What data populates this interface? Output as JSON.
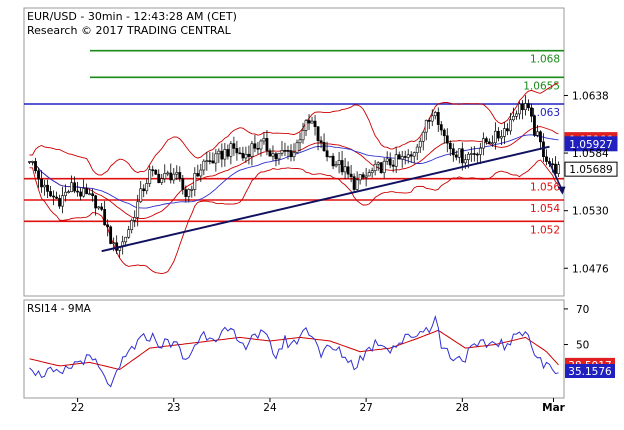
{
  "header": {
    "title": "EUR/USD - 30min - 12:43:28 AM (CET)",
    "research": "Research © 2017 TRADING CENTRAL"
  },
  "colors": {
    "resistance_green": "#1a8a1a",
    "pivot_blue": "#2020c0",
    "support_red": "#e01010",
    "trendline_navy": "#101060",
    "candles": "#000000",
    "bollinger": "#cc0000",
    "ma_blue": "#3030d0",
    "badge_red": "#e02020",
    "badge_blue": "#2020c0",
    "badge_black": "#000000"
  },
  "chart_data": [
    {
      "type": "candlestick",
      "instrument": "EUR/USD",
      "timeframe": "30min",
      "ylim": [
        1.045,
        1.072
      ],
      "price_ticks": [
        "1.0638",
        "1.0584",
        "1.0530",
        "1.0476"
      ],
      "x_tick_labels": [
        "22",
        "23",
        "24",
        "27",
        "28",
        "Mar"
      ],
      "levels": [
        {
          "label": "1.068",
          "value": 1.068,
          "color": "#1a8a1a"
        },
        {
          "label": "1.0655",
          "value": 1.0655,
          "color": "#1a8a1a"
        },
        {
          "label": "1.063",
          "value": 1.063,
          "color": "#2020c0"
        },
        {
          "label": "1.056",
          "value": 1.056,
          "color": "#e01010"
        },
        {
          "label": "1.054",
          "value": 1.054,
          "color": "#e01010"
        },
        {
          "label": "1.052",
          "value": 1.052,
          "color": "#e01010"
        }
      ],
      "price_badges": [
        {
          "label": "1.05966",
          "value": 1.05966,
          "style": "red"
        },
        {
          "label": "1.05927",
          "value": 1.05927,
          "style": "blue"
        },
        {
          "label": "1.05689",
          "value": 1.05689,
          "style": "black"
        }
      ],
      "trendline": {
        "from": [
          24,
          1.0492
        ],
        "to": [
          173,
          1.059
        ]
      },
      "forecast_arrow": {
        "from": [
          173,
          1.0575
        ],
        "to": [
          177,
          1.0545
        ]
      },
      "close_anchors": [
        [
          0,
          1.058
        ],
        [
          3,
          1.056
        ],
        [
          6,
          1.0545
        ],
        [
          10,
          1.054
        ],
        [
          14,
          1.0552
        ],
        [
          18,
          1.0545
        ],
        [
          22,
          1.0538
        ],
        [
          25,
          1.052
        ],
        [
          28,
          1.0495
        ],
        [
          31,
          1.05
        ],
        [
          34,
          1.052
        ],
        [
          37,
          1.0545
        ],
        [
          40,
          1.0565
        ],
        [
          44,
          1.056
        ],
        [
          48,
          1.0565
        ],
        [
          52,
          1.0545
        ],
        [
          55,
          1.056
        ],
        [
          58,
          1.0575
        ],
        [
          62,
          1.0578
        ],
        [
          65,
          1.0585
        ],
        [
          68,
          1.0588
        ],
        [
          71,
          1.058
        ],
        [
          74,
          1.059
        ],
        [
          78,
          1.0592
        ],
        [
          82,
          1.058
        ],
        [
          85,
          1.0585
        ],
        [
          88,
          1.0585
        ],
        [
          91,
          1.0608
        ],
        [
          94,
          1.0612
        ],
        [
          97,
          1.059
        ],
        [
          100,
          1.058
        ],
        [
          104,
          1.057
        ],
        [
          108,
          1.0555
        ],
        [
          112,
          1.0562
        ],
        [
          116,
          1.057
        ],
        [
          120,
          1.0575
        ],
        [
          124,
          1.0578
        ],
        [
          127,
          1.058
        ],
        [
          130,
          1.06
        ],
        [
          133,
          1.0615
        ],
        [
          135,
          1.0628
        ],
        [
          137,
          1.0605
        ],
        [
          140,
          1.059
        ],
        [
          144,
          1.058
        ],
        [
          148,
          1.0585
        ],
        [
          152,
          1.0595
        ],
        [
          156,
          1.06
        ],
        [
          159,
          1.061
        ],
        [
          162,
          1.0625
        ],
        [
          165,
          1.063
        ],
        [
          168,
          1.0605
        ],
        [
          171,
          1.0585
        ],
        [
          174,
          1.057
        ],
        [
          176,
          1.0569
        ]
      ]
    },
    {
      "type": "line",
      "label": "RSI14 - 9MA",
      "ylim": [
        20,
        75
      ],
      "y_ticks": [
        "70",
        "50"
      ],
      "badges": [
        {
          "label": "38.5917",
          "value": 38.5917,
          "style": "red"
        },
        {
          "label": "35.1576",
          "value": 35.1576,
          "style": "blue"
        }
      ],
      "rsi_anchors": [
        [
          0,
          40
        ],
        [
          3,
          33
        ],
        [
          6,
          35
        ],
        [
          10,
          32
        ],
        [
          14,
          38
        ],
        [
          18,
          42
        ],
        [
          22,
          40
        ],
        [
          25,
          30
        ],
        [
          28,
          28
        ],
        [
          31,
          40
        ],
        [
          34,
          48
        ],
        [
          37,
          52
        ],
        [
          40,
          55
        ],
        [
          44,
          50
        ],
        [
          48,
          52
        ],
        [
          52,
          40
        ],
        [
          55,
          50
        ],
        [
          58,
          56
        ],
        [
          62,
          55
        ],
        [
          65,
          57
        ],
        [
          68,
          55
        ],
        [
          71,
          48
        ],
        [
          74,
          56
        ],
        [
          78,
          55
        ],
        [
          82,
          44
        ],
        [
          85,
          52
        ],
        [
          88,
          50
        ],
        [
          91,
          58
        ],
        [
          94,
          57
        ],
        [
          97,
          45
        ],
        [
          100,
          48
        ],
        [
          104,
          45
        ],
        [
          108,
          38
        ],
        [
          112,
          46
        ],
        [
          116,
          52
        ],
        [
          120,
          48
        ],
        [
          124,
          52
        ],
        [
          127,
          55
        ],
        [
          130,
          57
        ],
        [
          133,
          60
        ],
        [
          135,
          65
        ],
        [
          137,
          50
        ],
        [
          140,
          44
        ],
        [
          144,
          42
        ],
        [
          148,
          48
        ],
        [
          152,
          50
        ],
        [
          156,
          52
        ],
        [
          159,
          48
        ],
        [
          162,
          55
        ],
        [
          165,
          60
        ],
        [
          168,
          45
        ],
        [
          171,
          38
        ],
        [
          174,
          37
        ],
        [
          176,
          35.1576
        ]
      ],
      "ma_anchors": [
        [
          0,
          42
        ],
        [
          10,
          38
        ],
        [
          20,
          40
        ],
        [
          30,
          36
        ],
        [
          40,
          48
        ],
        [
          50,
          50
        ],
        [
          60,
          52
        ],
        [
          70,
          54
        ],
        [
          80,
          52
        ],
        [
          90,
          54
        ],
        [
          100,
          52
        ],
        [
          110,
          46
        ],
        [
          120,
          48
        ],
        [
          130,
          54
        ],
        [
          136,
          58
        ],
        [
          145,
          48
        ],
        [
          155,
          50
        ],
        [
          165,
          54
        ],
        [
          172,
          46
        ],
        [
          176,
          38.5917
        ]
      ]
    }
  ]
}
